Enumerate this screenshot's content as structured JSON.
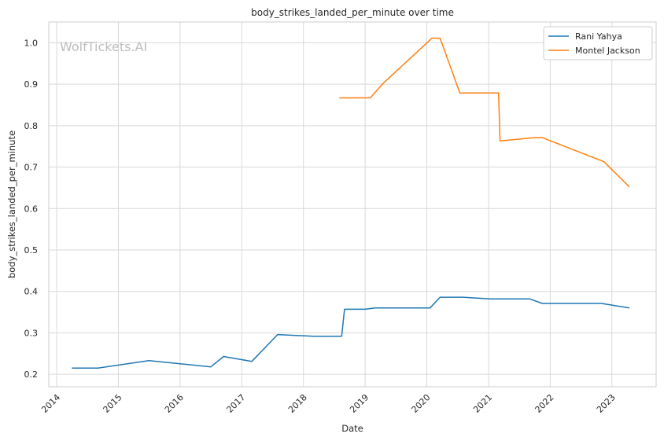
{
  "chart_data": {
    "type": "line",
    "title": "body_strikes_landed_per_minute over time",
    "xlabel": "Date",
    "ylabel": "body_strikes_landed_per_minute",
    "watermark": "WolfTickets.AI",
    "xlim": [
      "2013-11-15",
      "2023-09-20"
    ],
    "ylim": [
      0.17,
      1.05
    ],
    "x_ticks": [
      "2014",
      "2015",
      "2016",
      "2017",
      "2018",
      "2019",
      "2020",
      "2021",
      "2022",
      "2023"
    ],
    "y_ticks": [
      0.2,
      0.3,
      0.4,
      0.5,
      0.6,
      0.7,
      0.8,
      0.9,
      1.0
    ],
    "y_tick_labels": [
      "0.2",
      "0.3",
      "0.4",
      "0.5",
      "0.6",
      "0.7",
      "0.8",
      "0.9",
      "1.0"
    ],
    "grid": true,
    "legend_position": "top-right",
    "series": [
      {
        "name": "Rani Yahya",
        "color": "#1f77b4",
        "points": [
          [
            "2014-04-01",
            0.215
          ],
          [
            "2014-09-01",
            0.215
          ],
          [
            "2015-07-01",
            0.233
          ],
          [
            "2016-07-01",
            0.218
          ],
          [
            "2016-09-15",
            0.243
          ],
          [
            "2017-03-01",
            0.231
          ],
          [
            "2017-08-01",
            0.296
          ],
          [
            "2018-03-01",
            0.292
          ],
          [
            "2018-08-15",
            0.292
          ],
          [
            "2018-09-01",
            0.357
          ],
          [
            "2019-01-01",
            0.357
          ],
          [
            "2019-03-01",
            0.36
          ],
          [
            "2020-01-20",
            0.36
          ],
          [
            "2020-03-20",
            0.386
          ],
          [
            "2020-08-01",
            0.386
          ],
          [
            "2021-01-15",
            0.382
          ],
          [
            "2021-09-01",
            0.382
          ],
          [
            "2021-11-15",
            0.371
          ],
          [
            "2022-11-01",
            0.371
          ],
          [
            "2023-04-15",
            0.36
          ]
        ]
      },
      {
        "name": "Montel Jackson",
        "color": "#ff7f0e",
        "points": [
          [
            "2018-08-01",
            0.867
          ],
          [
            "2019-02-01",
            0.867
          ],
          [
            "2019-04-15",
            0.901
          ],
          [
            "2020-02-01",
            1.011
          ],
          [
            "2020-03-20",
            1.011
          ],
          [
            "2020-07-15",
            0.879
          ],
          [
            "2021-03-01",
            0.879
          ],
          [
            "2021-03-10",
            0.763
          ],
          [
            "2021-10-01",
            0.771
          ],
          [
            "2021-11-15",
            0.771
          ],
          [
            "2022-11-15",
            0.713
          ],
          [
            "2023-04-15",
            0.652
          ]
        ]
      }
    ]
  }
}
